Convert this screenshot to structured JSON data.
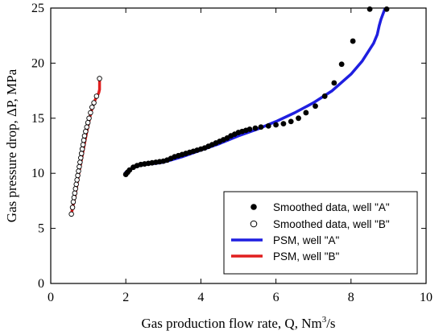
{
  "chart_data": {
    "type": "scatter",
    "title": "",
    "xlabel_main": "Gas production flow rate, Q, Nm",
    "xlabel_sup": "3",
    "xlabel_tail": "/s",
    "ylabel": "Gas pressure drop, ΔP, MPa",
    "xlim": [
      0,
      10
    ],
    "ylim": [
      0,
      25
    ],
    "xticks": [
      0,
      2,
      4,
      6,
      8,
      10
    ],
    "yticks": [
      0,
      5,
      10,
      15,
      20,
      25
    ],
    "grid": false,
    "legend_position": "bottom-right",
    "colors": {
      "psm_a": "#1f1fe0",
      "psm_b": "#e01f1f",
      "points": "#000000"
    },
    "series": [
      {
        "name": "Smoothed data, well \"A\"",
        "kind": "points-filled",
        "x": [
          2.0,
          2.05,
          2.1,
          2.2,
          2.3,
          2.4,
          2.5,
          2.6,
          2.7,
          2.8,
          2.9,
          3.0,
          3.1,
          3.2,
          3.3,
          3.4,
          3.5,
          3.6,
          3.7,
          3.8,
          3.9,
          4.0,
          4.1,
          4.2,
          4.3,
          4.4,
          4.5,
          4.6,
          4.7,
          4.8,
          4.9,
          5.0,
          5.1,
          5.2,
          5.3,
          5.45,
          5.6,
          5.8,
          6.0,
          6.2,
          6.4,
          6.6,
          6.8,
          7.05,
          7.3,
          7.55,
          7.75,
          8.05,
          8.5,
          8.95
        ],
        "y": [
          9.9,
          10.1,
          10.3,
          10.55,
          10.7,
          10.8,
          10.85,
          10.9,
          10.95,
          11.0,
          11.05,
          11.1,
          11.2,
          11.35,
          11.5,
          11.6,
          11.7,
          11.8,
          11.9,
          12.0,
          12.1,
          12.2,
          12.3,
          12.45,
          12.6,
          12.75,
          12.9,
          13.05,
          13.2,
          13.4,
          13.55,
          13.7,
          13.8,
          13.9,
          14.0,
          14.1,
          14.2,
          14.3,
          14.4,
          14.5,
          14.7,
          15.0,
          15.5,
          16.1,
          17.0,
          18.2,
          19.9,
          22.0,
          24.9,
          24.9
        ]
      },
      {
        "name": "Smoothed data, well \"B\"",
        "kind": "points-open",
        "x": [
          0.55,
          0.58,
          0.6,
          0.62,
          0.64,
          0.66,
          0.68,
          0.7,
          0.72,
          0.74,
          0.76,
          0.78,
          0.8,
          0.82,
          0.84,
          0.86,
          0.88,
          0.9,
          0.93,
          0.96,
          0.99,
          1.02,
          1.06,
          1.1,
          1.15,
          1.22,
          1.3
        ],
        "y": [
          6.3,
          6.9,
          7.4,
          7.8,
          8.2,
          8.6,
          9.0,
          9.4,
          9.8,
          10.2,
          10.6,
          11.0,
          11.4,
          11.8,
          12.2,
          12.6,
          13.0,
          13.4,
          13.8,
          14.2,
          14.6,
          15.0,
          15.5,
          16.0,
          16.4,
          17.0,
          18.6
        ]
      },
      {
        "name": "PSM, well \"A\"",
        "kind": "line",
        "x": [
          2.0,
          2.1,
          2.2,
          2.4,
          2.6,
          2.8,
          3.0,
          3.2,
          3.5,
          4.0,
          4.5,
          5.0,
          5.5,
          6.0,
          6.5,
          7.0,
          7.5,
          8.0,
          8.3,
          8.6,
          8.7,
          8.75,
          8.8,
          8.9
        ],
        "y": [
          10.1,
          10.3,
          10.5,
          10.75,
          10.85,
          10.9,
          11.0,
          11.2,
          11.5,
          12.1,
          12.7,
          13.4,
          14.0,
          14.7,
          15.5,
          16.4,
          17.5,
          19.0,
          20.2,
          21.8,
          22.6,
          23.4,
          24.0,
          24.9
        ]
      },
      {
        "name": "PSM, well \"B\"",
        "kind": "line",
        "x": [
          0.55,
          0.6,
          0.65,
          0.7,
          0.75,
          0.8,
          0.85,
          0.9,
          0.95,
          1.0,
          1.05,
          1.1,
          1.15,
          1.2,
          1.25,
          1.28,
          1.3,
          1.3
        ],
        "y": [
          6.3,
          7.2,
          8.0,
          9.0,
          10.0,
          10.9,
          11.8,
          12.7,
          13.6,
          14.4,
          15.2,
          15.9,
          16.4,
          16.8,
          17.1,
          17.3,
          17.6,
          18.6
        ]
      }
    ],
    "legend": [
      {
        "label": "Smoothed data, well \"A\"",
        "symbol": "filled-dot"
      },
      {
        "label": "Smoothed data, well \"B\"",
        "symbol": "open-dot"
      },
      {
        "label": "PSM, well \"A\"",
        "symbol": "blue-line"
      },
      {
        "label": "PSM, well \"B\"",
        "symbol": "red-line"
      }
    ]
  }
}
